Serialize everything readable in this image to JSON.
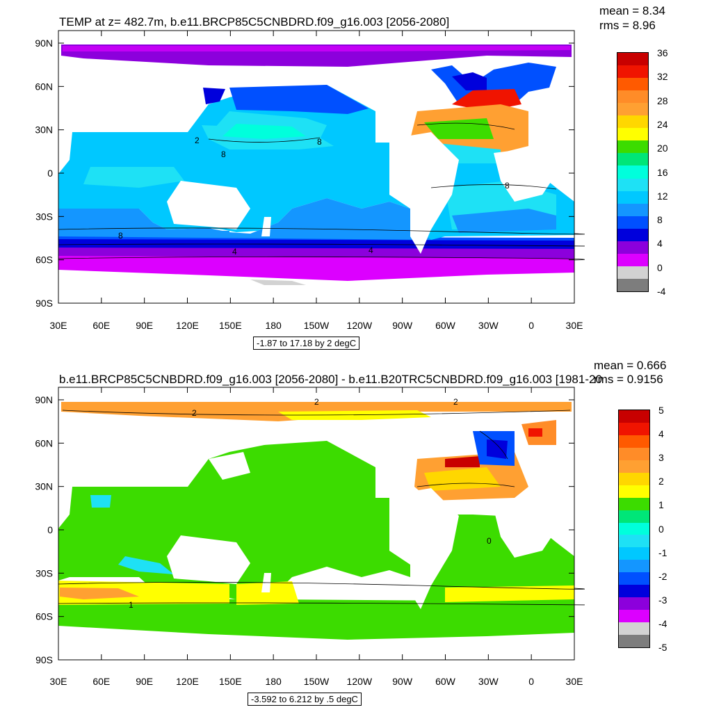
{
  "panels": [
    {
      "title": "TEMP at z= 482.7m, b.e11.BRCP85C5CNBDRD.f09_g16.003 [2056-2080]",
      "mean": "mean = 8.34",
      "rms": "rms = 8.96",
      "range": "-1.87 to 17.18 by 2 degC",
      "colorbar_labels": [
        "36",
        "32",
        "28",
        "24",
        "20",
        "16",
        "12",
        "8",
        "4",
        "0",
        "-4"
      ],
      "colorbar_colors": [
        "#c80000",
        "#f01400",
        "#ff5a00",
        "#ff8c28",
        "#ffa032",
        "#ffd700",
        "#ffff00",
        "#3cdc00",
        "#00e678",
        "#00ffdc",
        "#1ee1f5",
        "#00c8ff",
        "#1496ff",
        "#0050ff",
        "#0000dc",
        "#8c00dc",
        "#dc00ff",
        "#d2d2d2",
        "#7d7d7d"
      ],
      "contour_labels": [
        "2",
        "8",
        "8",
        "8",
        "8",
        "4",
        "4"
      ]
    },
    {
      "title": "b.e11.BRCP85C5CNBDRD.f09_g16.003 [2056-2080] - b.e11.B20TRC5CNBDRD.f09_g16.003 [1981-20",
      "mean": "mean = 0.666",
      "rms": "rms = 0.9156",
      "range": "-3.592 to 6.212 by .5 degC",
      "colorbar_labels": [
        "5",
        "4",
        "3",
        "2",
        "1",
        "0",
        "-1",
        "-2",
        "-3",
        "-4",
        "-5"
      ],
      "colorbar_colors": [
        "#c80000",
        "#f01400",
        "#ff5a00",
        "#ff8c28",
        "#ffa032",
        "#ffd700",
        "#ffff00",
        "#3cdc00",
        "#00e678",
        "#00ffdc",
        "#1ee1f5",
        "#00c8ff",
        "#1496ff",
        "#0050ff",
        "#0000dc",
        "#8c00dc",
        "#dc00ff",
        "#d2d2d2",
        "#7d7d7d"
      ],
      "contour_labels": [
        "2",
        "2",
        "2",
        "1",
        "0"
      ]
    }
  ],
  "lat_labels": [
    "90N",
    "60N",
    "30N",
    "0",
    "30S",
    "60S",
    "90S"
  ],
  "lon_labels": [
    "30E",
    "60E",
    "90E",
    "120E",
    "150E",
    "180",
    "150W",
    "120W",
    "90W",
    "60W",
    "30W",
    "0",
    "30E"
  ]
}
